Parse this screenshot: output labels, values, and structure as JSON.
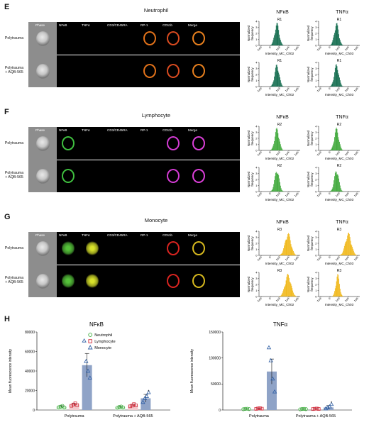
{
  "panels": [
    {
      "letter": "E",
      "cell_type": "Neutrophil",
      "gate": "R1",
      "hist_color": "#116b4d",
      "channel_colors": [
        "#e2721a",
        "#d94b20",
        "#e8801e"
      ]
    },
    {
      "letter": "F",
      "cell_type": "Lymphocyte",
      "gate": "R2",
      "hist_color": "#3ea83a",
      "channel_colors": [
        "#3fbf3f",
        "#d43bd4",
        "#dc3fd9"
      ]
    },
    {
      "letter": "G",
      "cell_type": "Monocyte",
      "gate": "R3",
      "hist_color": "#f0b81a",
      "channel_colors": [
        "#55c13a",
        "#d8e22a",
        "#d82420",
        "#d6b81e"
      ]
    }
  ],
  "image_columns": [
    "Phase",
    "NFκB",
    "TNFα",
    "CD3/CD45RA",
    "RP-1",
    "CD11b",
    "Merge"
  ],
  "rows": [
    "Polytrauma",
    "Polytrauma\n+ AQB-565"
  ],
  "histograms": {
    "titles": [
      "NFκB",
      "TNFα"
    ],
    "xlabels": [
      "Intensity_MC_Ch02",
      "Intensity_MC_Ch03"
    ],
    "ylabel": "Normalized\nfrequency",
    "yticks": [
      "0",
      "1",
      "2",
      "3",
      "4"
    ],
    "xticks": [
      "-1e3",
      "0",
      "1e3",
      "1e4",
      "1e5"
    ]
  },
  "panel_h": {
    "letter": "H",
    "ylabel": "Mean fluorescence intensity",
    "legend": [
      {
        "label": "Neutrophil",
        "color": "#3aae3a",
        "marker": "circle"
      },
      {
        "label": "Lymphocyte",
        "color": "#d22a3a",
        "marker": "square"
      },
      {
        "label": "Monocyte",
        "color": "#2f5fa5",
        "marker": "triangle"
      }
    ],
    "star": "*"
  },
  "chart_data": [
    {
      "type": "bar",
      "title": "NFκB",
      "categories": [
        "Polytrauma",
        "Polytrauma + AQB-565"
      ],
      "ylim": [
        0,
        80000
      ],
      "yticks": [
        "0",
        "20000",
        "40000",
        "60000",
        "80000"
      ],
      "series": [
        {
          "name": "Neutrophil",
          "values": [
            3500,
            3000
          ],
          "errors": [
            900,
            700
          ],
          "points": [
            [
              2800,
              3500,
              4200,
              2600
            ],
            [
              2400,
              3200,
              3600,
              2700
            ]
          ],
          "color": "#3aae3a"
        },
        {
          "name": "Lymphocyte",
          "values": [
            5500,
            4800
          ],
          "errors": [
            1200,
            1000
          ],
          "points": [
            [
              4300,
              5600,
              6800,
              5000
            ],
            [
              3800,
              4500,
              6000,
              4800
            ]
          ],
          "color": "#d22a3a"
        },
        {
          "name": "Monocyte",
          "values": [
            46000,
            12000
          ],
          "errors": [
            12000,
            4000
          ],
          "points": [
            [
              71000,
              50000,
              40000,
              33000
            ],
            [
              8000,
              12000,
              14000,
              18000
            ]
          ],
          "color": "#2f5fa5"
        }
      ]
    },
    {
      "type": "bar",
      "title": "TNFα",
      "categories": [
        "Polytrauma",
        "Polytrauma + AQB-565"
      ],
      "ylim": [
        0,
        150000
      ],
      "yticks": [
        "0",
        "50000",
        "100000",
        "150000"
      ],
      "series": [
        {
          "name": "Neutrophil",
          "values": [
            2000,
            1800
          ],
          "errors": [
            500,
            400
          ],
          "points": [
            [
              1500,
              2200,
              2500,
              1800
            ],
            [
              1300,
              2000,
              2200,
              1700
            ]
          ],
          "color": "#3aae3a"
        },
        {
          "name": "Lymphocyte",
          "values": [
            2800,
            2200
          ],
          "errors": [
            700,
            500
          ],
          "points": [
            [
              2200,
              3000,
              3500,
              2500
            ],
            [
              1800,
              2400,
              2800,
              2000
            ]
          ],
          "color": "#d22a3a"
        },
        {
          "name": "Monocyte",
          "values": [
            74000,
            5000
          ],
          "errors": [
            24000,
            3500
          ],
          "points": [
            [
              120000,
              95000,
              60000,
              35000
            ],
            [
              2500,
              4500,
              6500,
              11000
            ]
          ],
          "color": "#2f5fa5"
        }
      ]
    }
  ]
}
